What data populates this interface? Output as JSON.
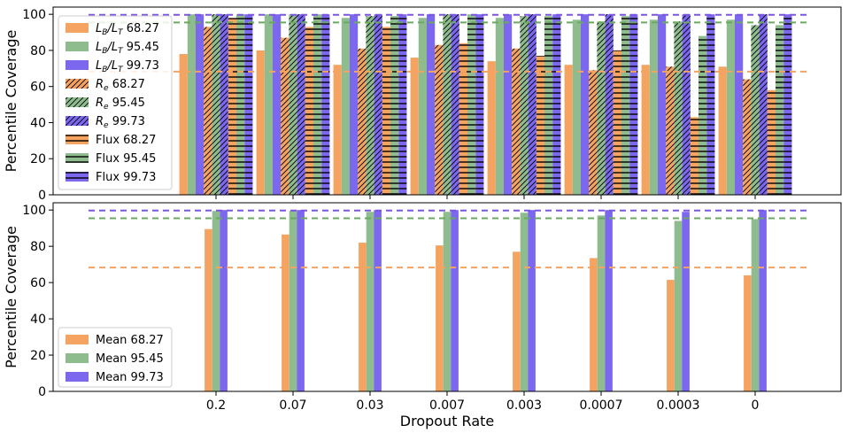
{
  "colors": {
    "c68": "#f4a460",
    "c95": "#8fbc8f",
    "c99": "#7b68ee",
    "c68_ref": "#f4a460",
    "c95_ref": "#6aaa60",
    "c99_ref": "#7b55e0"
  },
  "chart_data": [
    {
      "type": "bar",
      "ylabel": "Percentile Coverage",
      "ylim": [
        0,
        104
      ],
      "yticks": [
        0,
        20,
        40,
        60,
        80,
        100
      ],
      "categories": [
        "0.2",
        "0.07",
        "0.03",
        "0.007",
        "0.003",
        "0.0007",
        "0.0003",
        "0"
      ],
      "reference_lines": [
        68.27,
        95.45,
        99.73
      ],
      "legend_position": "upper-left",
      "series": [
        {
          "name": "L_B/L_T 68.27",
          "hatch": "none",
          "level": "68",
          "values": [
            78,
            80,
            72,
            76,
            74,
            72,
            72,
            71
          ]
        },
        {
          "name": "L_B/L_T 95.45",
          "hatch": "none",
          "level": "95",
          "values": [
            100,
            100,
            98,
            98,
            98,
            97,
            97,
            97
          ]
        },
        {
          "name": "L_B/L_T 99.73",
          "hatch": "none",
          "level": "99",
          "values": [
            100,
            100,
            100,
            100,
            100,
            100,
            100,
            100
          ]
        },
        {
          "name": "R_e 68.27",
          "hatch": "diag",
          "level": "68",
          "values": [
            93,
            87,
            81,
            83,
            81,
            69,
            71,
            64
          ]
        },
        {
          "name": "R_e 95.45",
          "hatch": "diag",
          "level": "95",
          "values": [
            100,
            100,
            99,
            100,
            99,
            96,
            96,
            94
          ]
        },
        {
          "name": "R_e 99.73",
          "hatch": "diag",
          "level": "99",
          "values": [
            100,
            100,
            100,
            100,
            100,
            100,
            100,
            100
          ]
        },
        {
          "name": "Flux 68.27",
          "hatch": "horiz",
          "level": "68",
          "values": [
            98,
            93,
            93,
            84,
            77,
            80,
            43,
            58
          ]
        },
        {
          "name": "Flux 95.45",
          "hatch": "horiz",
          "level": "95",
          "values": [
            100,
            100,
            99,
            100,
            99,
            99,
            88,
            94
          ]
        },
        {
          "name": "Flux 99.73",
          "hatch": "horiz",
          "level": "99",
          "values": [
            100,
            100,
            100,
            100,
            100,
            100,
            100,
            100
          ]
        }
      ],
      "legend": [
        {
          "label": "68.27",
          "prefix": "L",
          "sub1": "B",
          "sub2": "T"
        },
        {
          "label": "95.45",
          "prefix": "L",
          "sub1": "B",
          "sub2": "T"
        },
        {
          "label": "99.73",
          "prefix": "L",
          "sub1": "B",
          "sub2": "T"
        },
        {
          "label": "68.27",
          "prefix": "R",
          "sub1": "e"
        },
        {
          "label": "95.45",
          "prefix": "R",
          "sub1": "e"
        },
        {
          "label": "99.73",
          "prefix": "R",
          "sub1": "e"
        },
        {
          "label": "Flux 68.27"
        },
        {
          "label": "Flux 95.45"
        },
        {
          "label": "Flux 99.73"
        }
      ]
    },
    {
      "type": "bar",
      "xlabel": "Dropout Rate",
      "ylabel": "Percentile Coverage",
      "ylim": [
        0,
        104
      ],
      "yticks": [
        0,
        20,
        40,
        60,
        80,
        100
      ],
      "categories": [
        "0.2",
        "0.07",
        "0.03",
        "0.007",
        "0.003",
        "0.0007",
        "0.0003",
        "0"
      ],
      "reference_lines": [
        68.27,
        95.45,
        99.73
      ],
      "legend_position": "lower-left",
      "series": [
        {
          "name": "Mean 68.27",
          "level": "68",
          "values": [
            89.5,
            86.5,
            82,
            80.5,
            77,
            73.5,
            61.5,
            64
          ]
        },
        {
          "name": "Mean 95.45",
          "level": "95",
          "values": [
            99.5,
            99.5,
            99,
            99,
            98.5,
            97,
            94,
            95
          ]
        },
        {
          "name": "Mean 99.73",
          "level": "99",
          "values": [
            100,
            100,
            100,
            100,
            100,
            100,
            99,
            100
          ]
        }
      ]
    }
  ]
}
